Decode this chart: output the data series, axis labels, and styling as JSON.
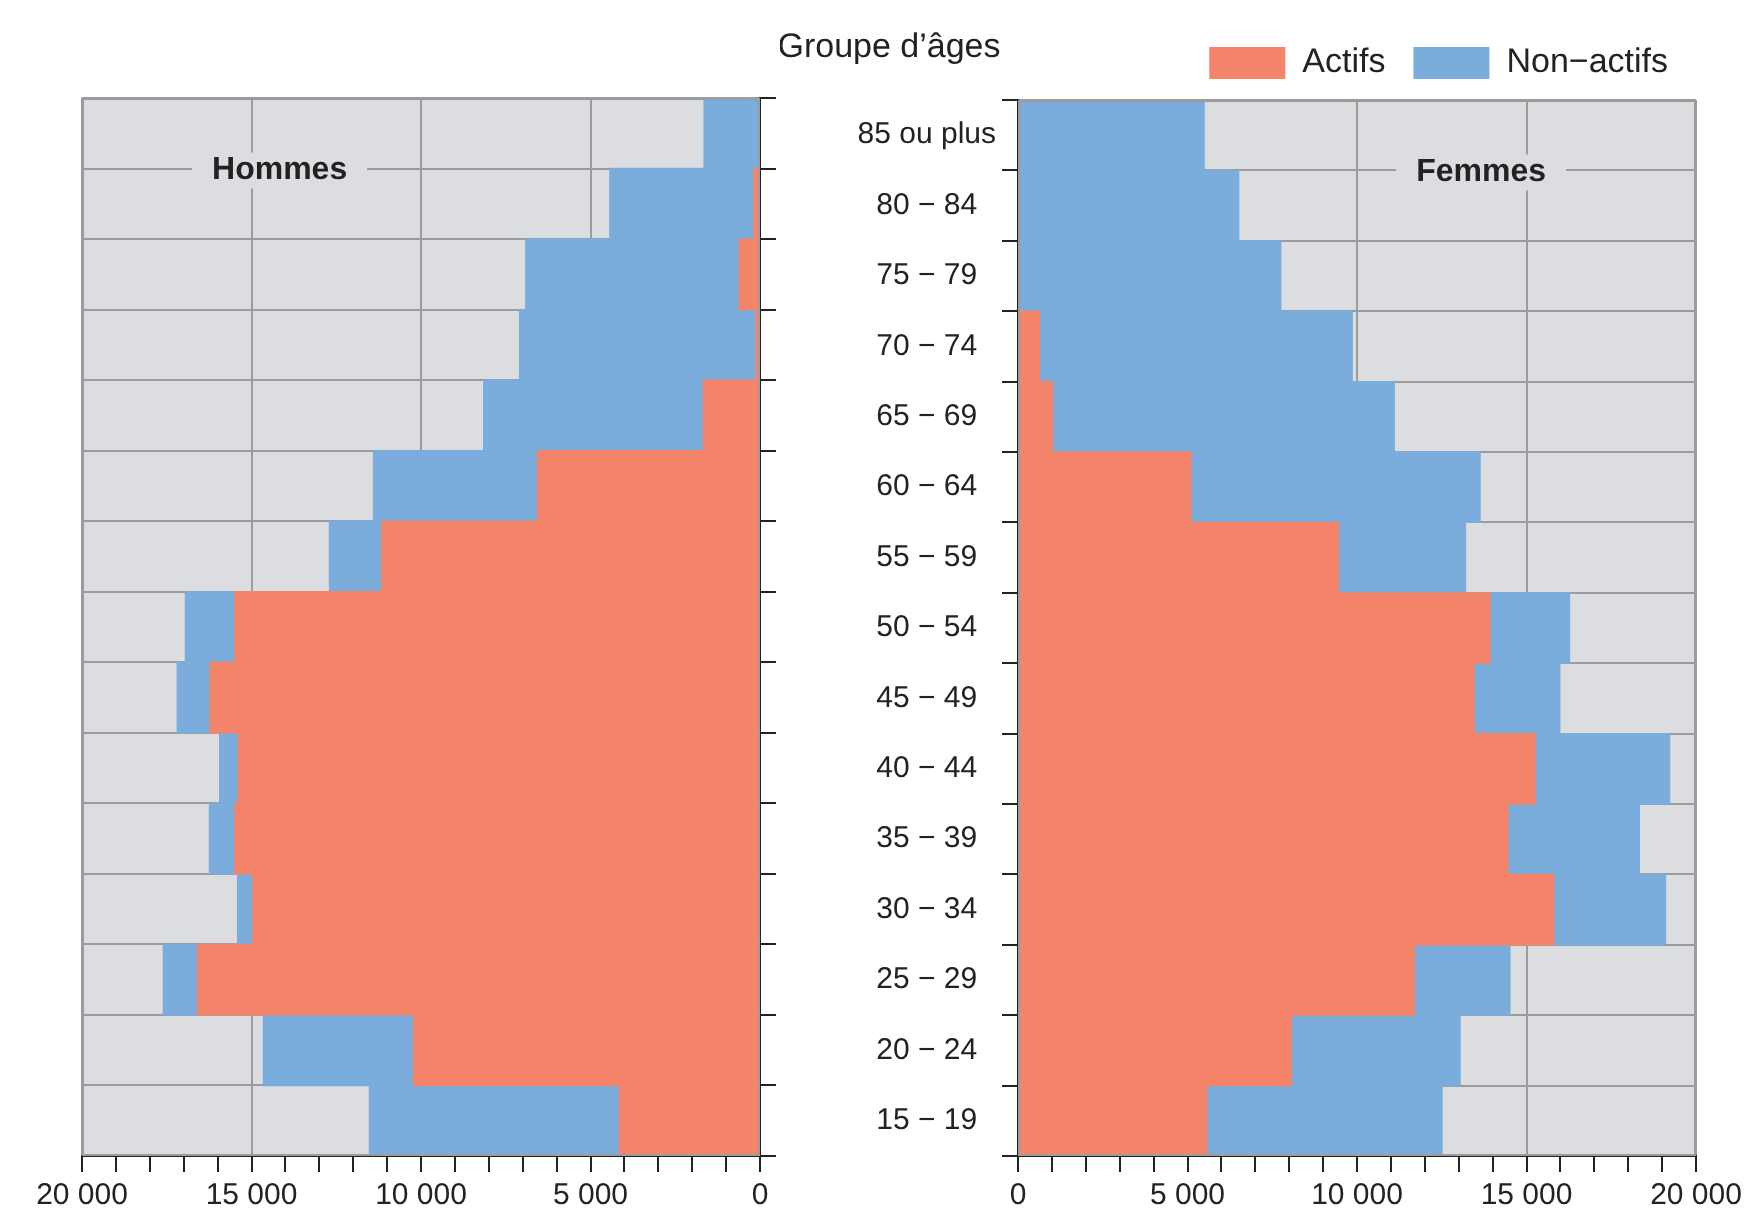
{
  "chart_data": [
    {
      "type": "bar",
      "orientation": "horizontal",
      "stacked": true,
      "title": "Hommes",
      "categories": [
        null,
        null,
        null,
        null,
        null,
        null,
        null,
        null,
        null,
        null,
        null,
        null,
        null,
        null,
        null
      ],
      "series": [
        {
          "color": "#f4846a",
          "values": [
            0,
            180,
            610,
            120,
            1670,
            6560,
            11160,
            15490,
            16220,
            15390,
            15490,
            14960,
            16590,
            10220,
            4150
          ]
        },
        {
          "color": "#7aaddc",
          "values": [
            1650,
            4250,
            6300,
            6970,
            6480,
            4840,
            1540,
            1460,
            970,
            550,
            750,
            450,
            1010,
            4430,
            7370
          ]
        }
      ],
      "xlim": [
        20000,
        0
      ],
      "xticks": [
        {
          "value": 20000,
          "label": "20 000"
        },
        {
          "value": 19000,
          "label": null
        },
        {
          "value": 18000,
          "label": null
        },
        {
          "value": 17000,
          "label": null
        },
        {
          "value": 16000,
          "label": null
        },
        {
          "value": 15000,
          "label": "15 000"
        },
        {
          "value": 14000,
          "label": null
        },
        {
          "value": 13000,
          "label": null
        },
        {
          "value": 12000,
          "label": null
        },
        {
          "value": 11000,
          "label": null
        },
        {
          "value": 10000,
          "label": "10 000"
        },
        {
          "value": 9000,
          "label": null
        },
        {
          "value": 8000,
          "label": null
        },
        {
          "value": 7000,
          "label": null
        },
        {
          "value": 6000,
          "label": null
        },
        {
          "value": 5000,
          "label": "5 000"
        },
        {
          "value": 4000,
          "label": null
        },
        {
          "value": 3000,
          "label": null
        },
        {
          "value": 2000,
          "label": null
        },
        {
          "value": 1000,
          "label": null
        },
        0
      ],
      "tick_labels": "x",
      "grid": true,
      "legend": false
    },
    {
      "type": "bar",
      "orientation": "horizontal",
      "stacked": true,
      "title": "Femmes",
      "ylabel": "Groupe d’âges",
      "categories": [
        "85 ou plus",
        "80 − 84",
        "75 − 79",
        "70 − 74",
        "65 − 69",
        "60 − 64",
        "55 − 59",
        "50 − 54",
        "45 − 49",
        "40 − 44",
        "35 − 39",
        "30 − 34",
        "25 − 29",
        "20 − 24",
        "15 − 19"
      ],
      "series": [
        {
          "name": "Actifs",
          "color": "#f4846a",
          "values": [
            0,
            0,
            0,
            630,
            1020,
            5100,
            9450,
            13920,
            13450,
            15250,
            14450,
            15800,
            11690,
            8060,
            5570
          ]
        },
        {
          "name": "Non−actifs",
          "color": "#7aaddc",
          "values": [
            5490,
            6510,
            7750,
            9230,
            10080,
            8530,
            3750,
            2350,
            2530,
            3970,
            3880,
            3300,
            2820,
            4980,
            6940
          ]
        }
      ],
      "xlim": [
        0,
        20000
      ],
      "xticks": [
        0,
        {
          "value": 1000,
          "label": null
        },
        {
          "value": 2000,
          "label": null
        },
        {
          "value": 3000,
          "label": null
        },
        {
          "value": 4000,
          "label": null
        },
        {
          "value": 5000,
          "label": "5 000"
        },
        {
          "value": 6000,
          "label": null
        },
        {
          "value": 7000,
          "label": null
        },
        {
          "value": 8000,
          "label": null
        },
        {
          "value": 9000,
          "label": null
        },
        {
          "value": 10000,
          "label": "10 000"
        },
        {
          "value": 11000,
          "label": null
        },
        {
          "value": 12000,
          "label": null
        },
        {
          "value": 13000,
          "label": null
        },
        {
          "value": 14000,
          "label": null
        },
        {
          "value": 15000,
          "label": "15 000"
        },
        {
          "value": 16000,
          "label": null
        },
        {
          "value": 17000,
          "label": null
        },
        {
          "value": 18000,
          "label": null
        },
        {
          "value": 19000,
          "label": null
        },
        {
          "value": 20000,
          "label": "20 000"
        }
      ],
      "grid": true,
      "legend": "top right"
    }
  ]
}
